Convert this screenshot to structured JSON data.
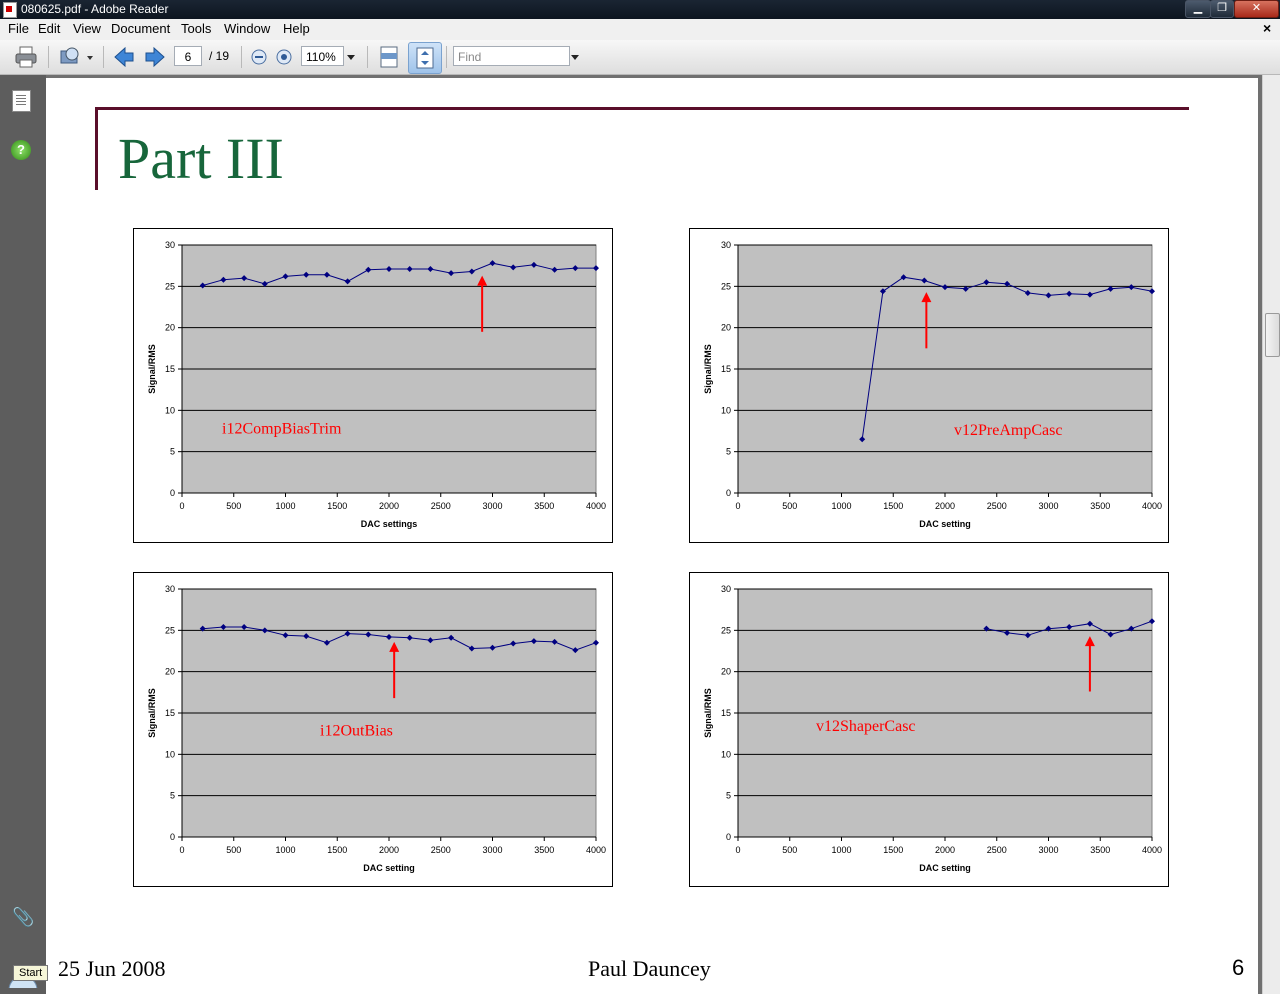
{
  "window": {
    "title": "080625.pdf - Adobe Reader",
    "minimize_label": "▁",
    "maximize_label": "❐",
    "close_label": "✕",
    "doc_close_label": "×"
  },
  "menu": {
    "items": [
      "File",
      "Edit",
      "View",
      "Document",
      "Tools",
      "Window",
      "Help"
    ]
  },
  "toolbar": {
    "page_current": "6",
    "page_total": "/ 19",
    "zoom": "110%",
    "find_placeholder": "Find",
    "icons": [
      "print-icon",
      "email-search-icon",
      "previous-page-icon",
      "next-page-icon",
      "zoom-out-icon",
      "zoom-in-icon",
      "fit-width-icon",
      "fit-page-icon"
    ]
  },
  "leftnav": {
    "help_glyph": "?",
    "clip_glyph": "📎"
  },
  "slide": {
    "title": "Part III",
    "footer_date": "25 Jun 2008",
    "footer_author": "Paul Dauncey",
    "footer_page": "6"
  },
  "taskbar": {
    "start_tooltip": "Start"
  },
  "chart_data": [
    {
      "type": "line",
      "annotation": "i12CompBiasTrim",
      "xlabel": "DAC settings",
      "ylabel": "Signal/RMS",
      "xlim": [
        0,
        4000
      ],
      "ylim": [
        0,
        30
      ],
      "xticks": [
        0,
        500,
        1000,
        1500,
        2000,
        2500,
        3000,
        3500,
        4000
      ],
      "yticks": [
        0,
        5,
        10,
        15,
        20,
        25,
        30
      ],
      "grid": true,
      "x": [
        200,
        400,
        600,
        800,
        1000,
        1200,
        1400,
        1600,
        1800,
        2000,
        2200,
        2400,
        2600,
        2800,
        3000,
        3200,
        3400,
        3600,
        3800,
        4000
      ],
      "y": [
        25.1,
        25.8,
        26.0,
        25.3,
        26.2,
        26.4,
        26.4,
        25.6,
        27.0,
        27.1,
        27.1,
        27.1,
        26.6,
        26.8,
        27.8,
        27.3,
        27.6,
        27.0,
        27.2,
        27.2
      ],
      "arrow_x": 2900,
      "arrow_from_y": 19.5,
      "arrow_to_y": 26.3,
      "annotation_color": "#ff0000",
      "line_color": "#000080"
    },
    {
      "type": "line",
      "annotation": "v12PreAmpCasc",
      "xlabel": "DAC setting",
      "ylabel": "Signal/RMS",
      "xlim": [
        0,
        4000
      ],
      "ylim": [
        0,
        30
      ],
      "xticks": [
        0,
        500,
        1000,
        1500,
        2000,
        2500,
        3000,
        3500,
        4000
      ],
      "yticks": [
        0,
        5,
        10,
        15,
        20,
        25,
        30
      ],
      "grid": true,
      "x": [
        1200,
        1400,
        1600,
        1800,
        2000,
        2200,
        2400,
        2600,
        2800,
        3000,
        3200,
        3400,
        3600,
        3800,
        4000
      ],
      "y": [
        6.5,
        24.4,
        26.1,
        25.7,
        24.9,
        24.7,
        25.5,
        25.3,
        24.2,
        23.9,
        24.1,
        24.0,
        24.7,
        24.9,
        24.4
      ],
      "arrow_x": 1820,
      "arrow_from_y": 17.5,
      "arrow_to_y": 24.3,
      "annotation_color": "#ff0000",
      "line_color": "#000080"
    },
    {
      "type": "line",
      "annotation": "i12OutBias",
      "xlabel": "DAC setting",
      "ylabel": "Signal/RMS",
      "xlim": [
        0,
        4000
      ],
      "ylim": [
        0,
        30
      ],
      "xticks": [
        0,
        500,
        1000,
        1500,
        2000,
        2500,
        3000,
        3500,
        4000
      ],
      "yticks": [
        0,
        5,
        10,
        15,
        20,
        25,
        30
      ],
      "grid": true,
      "x": [
        200,
        400,
        600,
        800,
        1000,
        1200,
        1400,
        1600,
        1800,
        2000,
        2200,
        2400,
        2600,
        2800,
        3000,
        3200,
        3400,
        3600,
        3800,
        4000
      ],
      "y": [
        25.2,
        25.4,
        25.4,
        25.0,
        24.4,
        24.3,
        23.5,
        24.6,
        24.5,
        24.2,
        24.1,
        23.8,
        24.1,
        22.8,
        22.9,
        23.4,
        23.7,
        23.6,
        22.6,
        23.5
      ],
      "arrow_x": 2050,
      "arrow_from_y": 16.8,
      "arrow_to_y": 23.6,
      "annotation_color": "#ff0000",
      "line_color": "#000080"
    },
    {
      "type": "line",
      "annotation": "v12ShaperCasc",
      "xlabel": "DAC setting",
      "ylabel": "Signal/RMS",
      "xlim": [
        0,
        4000
      ],
      "ylim": [
        0,
        30
      ],
      "xticks": [
        0,
        500,
        1000,
        1500,
        2000,
        2500,
        3000,
        3500,
        4000
      ],
      "yticks": [
        0,
        5,
        10,
        15,
        20,
        25,
        30
      ],
      "grid": true,
      "x": [
        2400,
        2600,
        2800,
        3000,
        3200,
        3400,
        3600,
        3800,
        4000
      ],
      "y": [
        25.2,
        24.7,
        24.4,
        25.2,
        25.4,
        25.8,
        24.5,
        25.2,
        26.1
      ],
      "arrow_x": 3400,
      "arrow_from_y": 17.6,
      "arrow_to_y": 24.3,
      "annotation_color": "#ff0000",
      "line_color": "#000080"
    }
  ]
}
